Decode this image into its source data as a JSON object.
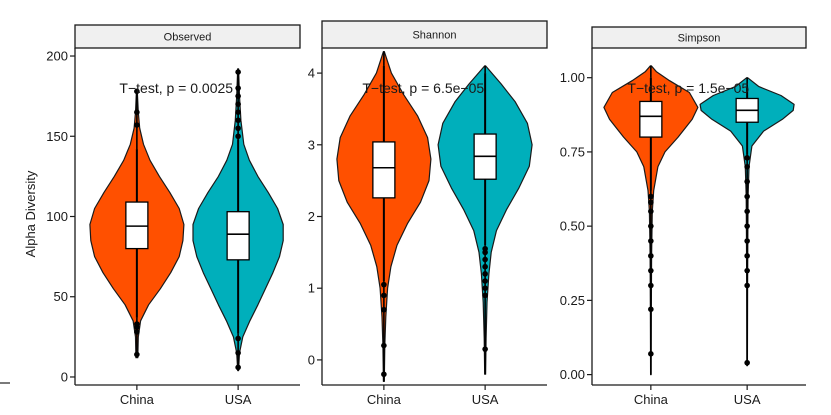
{
  "chart_data": {
    "type": "violin",
    "ylabel": "Alpha Diversity",
    "categories": [
      "China",
      "USA"
    ],
    "colors": {
      "China": "#FF5000",
      "USA": "#00AFBB"
    },
    "panels": [
      {
        "title": "Observed",
        "annotation": "T−test, p = 0.0025",
        "ylim": [
          -5,
          205
        ],
        "yticks": [
          0,
          50,
          100,
          150,
          200
        ],
        "ytick_labels": [
          "0",
          "50",
          "100",
          "150",
          "200"
        ],
        "violins": [
          {
            "category": "China",
            "min": 12,
            "max": 178,
            "q1": 80,
            "median": 94,
            "q3": 109,
            "whisker_low": 37,
            "whisker_high": 142,
            "profile": [
              [
                12,
                0.02
              ],
              [
                25,
                0.03
              ],
              [
                35,
                0.08
              ],
              [
                45,
                0.25
              ],
              [
                55,
                0.5
              ],
              [
                65,
                0.72
              ],
              [
                75,
                0.9
              ],
              [
                85,
                0.98
              ],
              [
                95,
                1.0
              ],
              [
                105,
                0.9
              ],
              [
                115,
                0.7
              ],
              [
                125,
                0.48
              ],
              [
                135,
                0.28
              ],
              [
                145,
                0.14
              ],
              [
                155,
                0.06
              ],
              [
                165,
                0.03
              ],
              [
                178,
                0.01
              ]
            ],
            "outliers": [
              14,
              28,
              31,
              33,
              157,
              165,
              178
            ]
          },
          {
            "category": "USA",
            "min": 4,
            "max": 192,
            "q1": 73,
            "median": 89,
            "q3": 103,
            "whisker_low": 27,
            "whisker_high": 148,
            "profile": [
              [
                4,
                0.01
              ],
              [
                15,
                0.03
              ],
              [
                25,
                0.1
              ],
              [
                35,
                0.25
              ],
              [
                45,
                0.42
              ],
              [
                55,
                0.58
              ],
              [
                65,
                0.74
              ],
              [
                75,
                0.88
              ],
              [
                85,
                0.96
              ],
              [
                95,
                0.96
              ],
              [
                105,
                0.84
              ],
              [
                115,
                0.64
              ],
              [
                125,
                0.42
              ],
              [
                135,
                0.24
              ],
              [
                145,
                0.12
              ],
              [
                160,
                0.06
              ],
              [
                175,
                0.03
              ],
              [
                192,
                0.01
              ]
            ],
            "outliers": [
              6,
              15,
              24,
              150,
              155,
              160,
              165,
              170,
              175,
              180,
              190
            ]
          }
        ]
      },
      {
        "title": "Shannon",
        "annotation": "T−test, p = 6.5e−05",
        "ylim": [
          -0.35,
          4.35
        ],
        "yticks": [
          0,
          1,
          2,
          3,
          4
        ],
        "ytick_labels": [
          "0",
          "1",
          "2",
          "3",
          "4"
        ],
        "violins": [
          {
            "category": "China",
            "min": -0.3,
            "max": 4.3,
            "q1": 2.26,
            "median": 2.68,
            "q3": 3.04,
            "whisker_low": 1.1,
            "whisker_high": 4.1,
            "profile": [
              [
                -0.3,
                0.01
              ],
              [
                0.2,
                0.02
              ],
              [
                0.6,
                0.04
              ],
              [
                1.0,
                0.08
              ],
              [
                1.3,
                0.15
              ],
              [
                1.6,
                0.28
              ],
              [
                1.9,
                0.5
              ],
              [
                2.2,
                0.78
              ],
              [
                2.5,
                0.96
              ],
              [
                2.8,
                1.0
              ],
              [
                3.1,
                0.93
              ],
              [
                3.4,
                0.72
              ],
              [
                3.7,
                0.42
              ],
              [
                4.0,
                0.16
              ],
              [
                4.3,
                0.01
              ]
            ],
            "outliers": [
              -0.2,
              0.2,
              0.7,
              0.9,
              1.05
            ]
          },
          {
            "category": "USA",
            "min": -0.2,
            "max": 4.1,
            "q1": 2.52,
            "median": 2.84,
            "q3": 3.15,
            "whisker_low": 1.6,
            "whisker_high": 4.0,
            "profile": [
              [
                -0.2,
                0.01
              ],
              [
                0.3,
                0.02
              ],
              [
                0.8,
                0.04
              ],
              [
                1.2,
                0.08
              ],
              [
                1.5,
                0.13
              ],
              [
                1.8,
                0.24
              ],
              [
                2.1,
                0.46
              ],
              [
                2.4,
                0.72
              ],
              [
                2.7,
                0.94
              ],
              [
                3.0,
                1.0
              ],
              [
                3.3,
                0.9
              ],
              [
                3.6,
                0.64
              ],
              [
                3.85,
                0.34
              ],
              [
                4.1,
                0.01
              ]
            ],
            "outliers": [
              0.15,
              0.9,
              1.0,
              1.1,
              1.2,
              1.3,
              1.4,
              1.5,
              1.55
            ]
          }
        ]
      },
      {
        "title": "Simpson",
        "annotation": "T−test, p = 1.5e−05",
        "ylim": [
          -0.035,
          1.1
        ],
        "yticks": [
          0,
          0.25,
          0.5,
          0.75,
          1.0
        ],
        "ytick_labels": [
          "0.00",
          "0.25",
          "0.50",
          "0.75",
          "1.00"
        ],
        "violins": [
          {
            "category": "China",
            "min": 0,
            "max": 1.04,
            "q1": 0.8,
            "median": 0.87,
            "q3": 0.92,
            "whisker_low": 0.62,
            "whisker_high": 1.0,
            "profile": [
              [
                0.0,
                0.005
              ],
              [
                0.2,
                0.01
              ],
              [
                0.4,
                0.015
              ],
              [
                0.55,
                0.03
              ],
              [
                0.62,
                0.06
              ],
              [
                0.7,
                0.15
              ],
              [
                0.75,
                0.3
              ],
              [
                0.8,
                0.58
              ],
              [
                0.86,
                0.88
              ],
              [
                0.9,
                1.0
              ],
              [
                0.95,
                0.82
              ],
              [
                0.99,
                0.4
              ],
              [
                1.02,
                0.12
              ],
              [
                1.04,
                0.01
              ]
            ],
            "outliers": [
              0.07,
              0.22,
              0.3,
              0.35,
              0.4,
              0.45,
              0.5,
              0.55,
              0.58,
              0.6
            ]
          },
          {
            "category": "USA",
            "min": 0.03,
            "max": 1.0,
            "q1": 0.85,
            "median": 0.89,
            "q3": 0.93,
            "whisker_low": 0.74,
            "whisker_high": 0.97,
            "profile": [
              [
                0.03,
                0.005
              ],
              [
                0.3,
                0.01
              ],
              [
                0.5,
                0.015
              ],
              [
                0.6,
                0.02
              ],
              [
                0.7,
                0.04
              ],
              [
                0.77,
                0.1
              ],
              [
                0.82,
                0.35
              ],
              [
                0.86,
                0.75
              ],
              [
                0.89,
                0.98
              ],
              [
                0.91,
                1.0
              ],
              [
                0.94,
                0.72
              ],
              [
                0.97,
                0.25
              ],
              [
                1.0,
                0.01
              ]
            ],
            "outliers": [
              0.04,
              0.3,
              0.35,
              0.4,
              0.45,
              0.5,
              0.55,
              0.6,
              0.65,
              0.7,
              0.73
            ]
          }
        ]
      }
    ]
  }
}
